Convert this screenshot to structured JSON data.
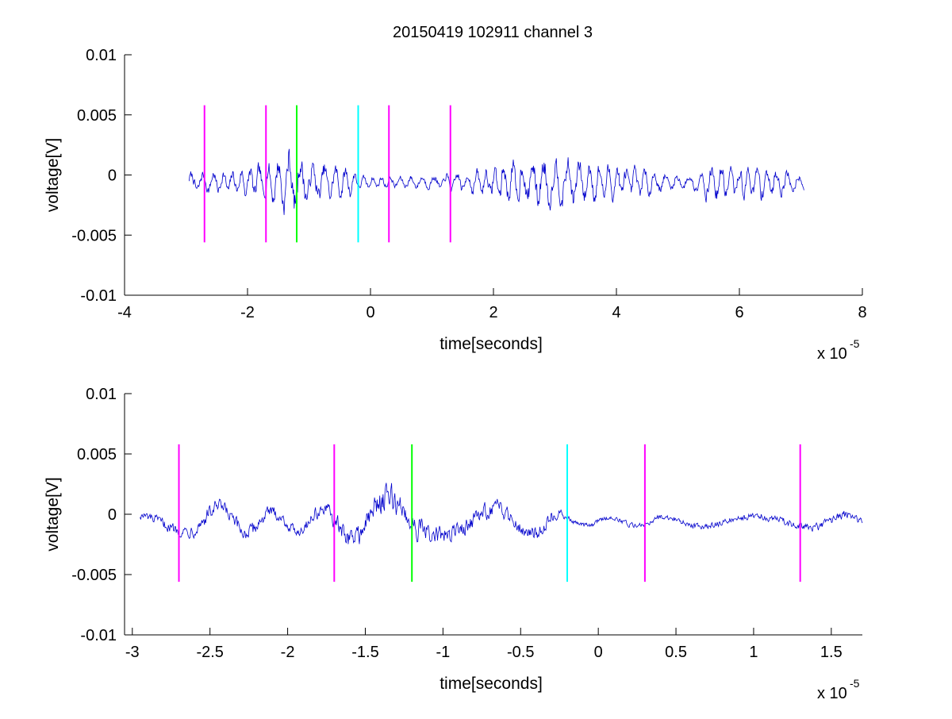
{
  "figure": {
    "title": "20150419 102911 channel 3",
    "background_color": "#ffffff",
    "trace_color": "#0000cc"
  },
  "chart_data": [
    {
      "type": "line",
      "title": "20150419 102911 channel 3",
      "xlabel": "time[seconds]",
      "ylabel": "voltage[V]",
      "x_multiplier_label": "x 10",
      "x_multiplier_exponent": "-5",
      "xlim": [
        -4,
        8
      ],
      "ylim": [
        -0.01,
        0.01
      ],
      "xticks": [
        -4,
        -2,
        0,
        2,
        4,
        6,
        8
      ],
      "xtick_labels": [
        "-4",
        "-2",
        "0",
        "2",
        "4",
        "6",
        "8"
      ],
      "yticks": [
        -0.01,
        -0.005,
        0,
        0.005,
        0.01
      ],
      "ytick_labels": [
        "-0.01",
        "-0.005",
        "0",
        "0.005",
        "0.01"
      ],
      "grid": false,
      "series": [
        {
          "x_range": [
            -2.95,
            7.05
          ],
          "envelope": [
            [
              -2.95,
              0.0014
            ],
            [
              -2.6,
              0.0016
            ],
            [
              -2.2,
              0.0016
            ],
            [
              -2.0,
              0.0022
            ],
            [
              -1.7,
              0.0026
            ],
            [
              -1.5,
              0.0035
            ],
            [
              -1.35,
              0.0048
            ],
            [
              -1.2,
              0.004
            ],
            [
              -1.0,
              0.0028
            ],
            [
              -0.6,
              0.0025
            ],
            [
              -0.25,
              0.0018
            ],
            [
              -0.2,
              0.0009
            ],
            [
              0.3,
              0.0008
            ],
            [
              1.0,
              0.0009
            ],
            [
              1.3,
              0.0013
            ],
            [
              1.8,
              0.0018
            ],
            [
              2.4,
              0.0033
            ],
            [
              2.8,
              0.0036
            ],
            [
              3.3,
              0.0032
            ],
            [
              3.8,
              0.0025
            ],
            [
              4.3,
              0.0022
            ],
            [
              4.8,
              0.0012
            ],
            [
              5.2,
              0.0009
            ],
            [
              5.5,
              0.0025
            ],
            [
              5.9,
              0.0022
            ],
            [
              6.4,
              0.0024
            ],
            [
              7.05,
              0.0011
            ]
          ]
        }
      ],
      "markers": [
        {
          "x": -2.7,
          "y_range": [
            -0.0056,
            0.0058
          ],
          "color": "#ff00ff"
        },
        {
          "x": -1.7,
          "y_range": [
            -0.0056,
            0.0058
          ],
          "color": "#ff00ff"
        },
        {
          "x": -1.2,
          "y_range": [
            -0.0056,
            0.0058
          ],
          "color": "#00ff00"
        },
        {
          "x": -0.2,
          "y_range": [
            -0.0056,
            0.0058
          ],
          "color": "#00ffff"
        },
        {
          "x": 0.3,
          "y_range": [
            -0.0056,
            0.0058
          ],
          "color": "#ff00ff"
        },
        {
          "x": 1.3,
          "y_range": [
            -0.0056,
            0.0058
          ],
          "color": "#ff00ff"
        }
      ]
    },
    {
      "type": "line",
      "title": "",
      "xlabel": "time[seconds]",
      "ylabel": "voltage[V]",
      "x_multiplier_label": "x 10",
      "x_multiplier_exponent": "-5",
      "xlim": [
        -3.05,
        1.7
      ],
      "ylim": [
        -0.01,
        0.01
      ],
      "xticks": [
        -3,
        -2.5,
        -2,
        -1.5,
        -1,
        -0.5,
        0,
        0.5,
        1,
        1.5
      ],
      "xtick_labels": [
        "-3",
        "-2.5",
        "-2",
        "-1.5",
        "-1",
        "-0.5",
        "0",
        "0.5",
        "1",
        "1.5"
      ],
      "yticks": [
        -0.01,
        -0.005,
        0,
        0.005,
        0.01
      ],
      "ytick_labels": [
        "-0.01",
        "-0.005",
        "0",
        "0.005",
        "0.01"
      ],
      "grid": false,
      "series": [
        {
          "x_range": [
            -2.95,
            1.7
          ],
          "envelope": [
            [
              -2.95,
              0.0014
            ],
            [
              -2.7,
              0.0018
            ],
            [
              -2.5,
              0.0028
            ],
            [
              -2.3,
              0.0024
            ],
            [
              -2.0,
              0.0016
            ],
            [
              -1.8,
              0.0022
            ],
            [
              -1.65,
              0.003
            ],
            [
              -1.5,
              0.0038
            ],
            [
              -1.4,
              0.005
            ],
            [
              -1.3,
              0.0045
            ],
            [
              -1.2,
              0.004
            ],
            [
              -1.0,
              0.0028
            ],
            [
              -0.6,
              0.0026
            ],
            [
              -0.3,
              0.0022
            ],
            [
              -0.2,
              0.0009
            ],
            [
              0.0,
              0.0008
            ],
            [
              0.5,
              0.0009
            ],
            [
              1.0,
              0.0011
            ],
            [
              1.3,
              0.0012
            ],
            [
              1.7,
              0.0014
            ]
          ]
        }
      ],
      "markers": [
        {
          "x": -2.7,
          "y_range": [
            -0.0056,
            0.0058
          ],
          "color": "#ff00ff"
        },
        {
          "x": -1.7,
          "y_range": [
            -0.0056,
            0.0058
          ],
          "color": "#ff00ff"
        },
        {
          "x": -1.2,
          "y_range": [
            -0.0056,
            0.0058
          ],
          "color": "#00ff00"
        },
        {
          "x": -0.2,
          "y_range": [
            -0.0056,
            0.0058
          ],
          "color": "#00ffff"
        },
        {
          "x": 0.3,
          "y_range": [
            -0.0056,
            0.0058
          ],
          "color": "#ff00ff"
        },
        {
          "x": 1.3,
          "y_range": [
            -0.0056,
            0.0058
          ],
          "color": "#ff00ff"
        }
      ]
    }
  ]
}
